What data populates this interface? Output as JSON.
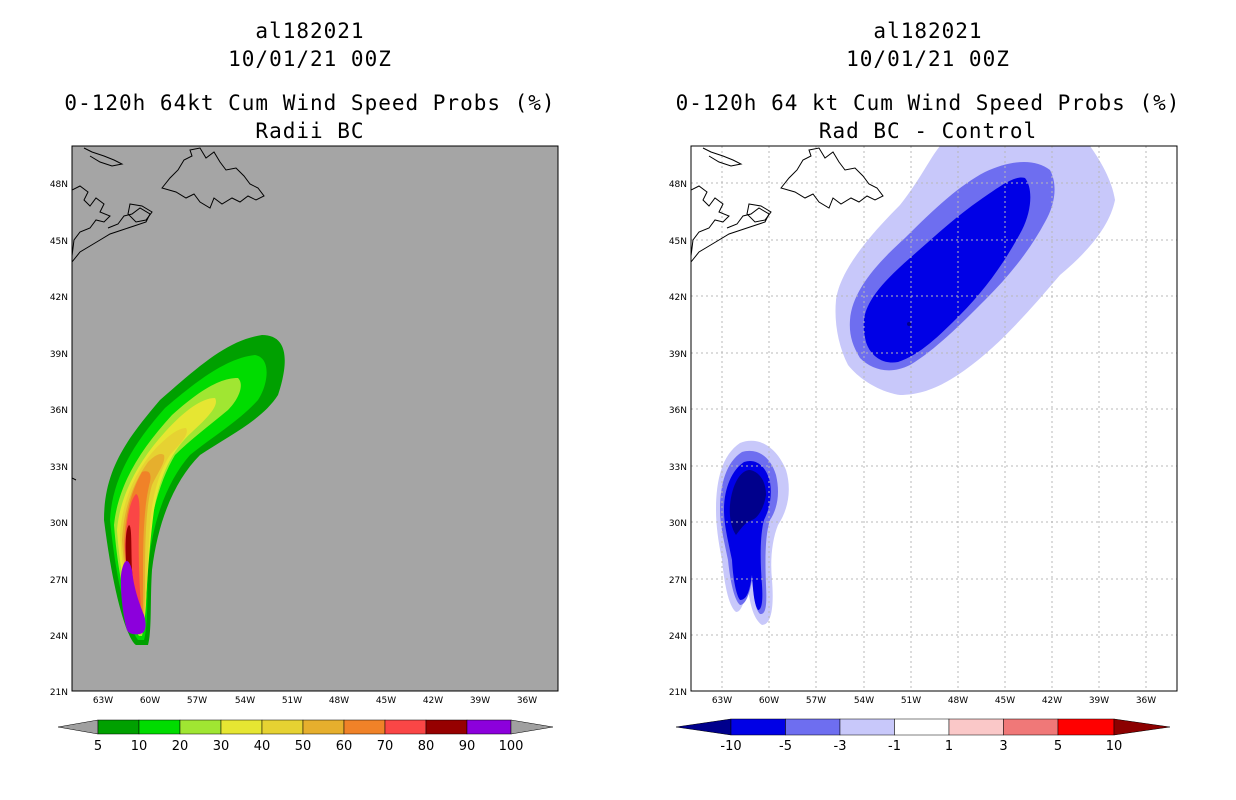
{
  "left_panel": {
    "storm_id": "al182021",
    "datetime": "10/01/21 00Z",
    "product": "0-120h 64kt Cum Wind Speed Probs (%)",
    "subtitle": "Radii BC",
    "colorbar": {
      "labels": [
        "5",
        "10",
        "20",
        "30",
        "40",
        "50",
        "60",
        "70",
        "80",
        "90",
        "100"
      ],
      "colors": [
        "#00a000",
        "#00dc00",
        "#a0e632",
        "#e6e632",
        "#e6d232",
        "#e6af2d",
        "#f08228",
        "#fa4646",
        "#960000",
        "#8c00dc"
      ],
      "end_color": "#a0a0a0"
    }
  },
  "right_panel": {
    "storm_id": "al182021",
    "datetime": "10/01/21 00Z",
    "product": "0-120h 64 kt Cum Wind Speed Probs (%)",
    "subtitle": "Rad BC - Control",
    "colorbar": {
      "labels": [
        "-10",
        "-5",
        "-3",
        "-1",
        "1",
        "3",
        "5",
        "10"
      ],
      "colors": [
        "#0000e6",
        "#6e6ef0",
        "#c8c8fa",
        "#ffffff",
        "#fac8c8",
        "#f07878",
        "#ff0000"
      ],
      "low_color": "#00008c",
      "high_color": "#8c0000"
    }
  },
  "axes": {
    "lon_labels": [
      "63W",
      "60W",
      "57W",
      "54W",
      "51W",
      "48W",
      "45W",
      "42W",
      "39W",
      "36W"
    ],
    "lat_labels": [
      "48N",
      "45N",
      "42N",
      "39N",
      "36N",
      "33N",
      "30N",
      "27N",
      "24N",
      "21N"
    ]
  },
  "colors": {
    "ocean_gray": "#a5a5a5",
    "coast": "#000000"
  }
}
